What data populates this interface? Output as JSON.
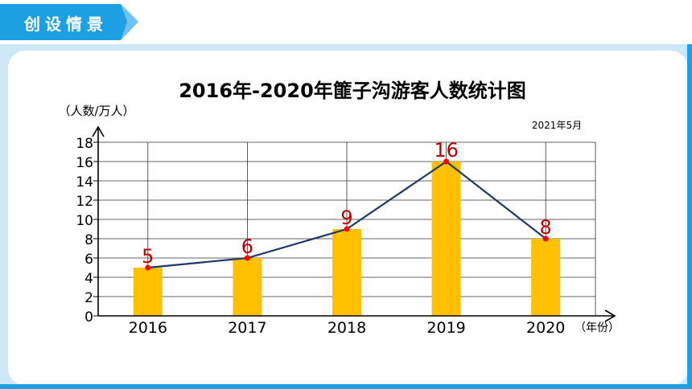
{
  "banner": {
    "title": "创设情景"
  },
  "colors": {
    "banner_blue": "#1d9fe4",
    "frame_blue": "#cfe8f7",
    "bar": "#ffc000",
    "line": "#1f3864",
    "point": "#ff0000",
    "label": "#c00000"
  },
  "chart_data": {
    "type": "bar",
    "title": "2016年-2020年篚子沟游客人数统计图",
    "subtitle": "2021年5月",
    "ylabel": "（人数/万人）",
    "xlabel": "（年份）",
    "categories": [
      "2016",
      "2017",
      "2018",
      "2019",
      "2020"
    ],
    "series": [
      {
        "values": [
          5,
          6,
          9,
          16,
          8
        ]
      }
    ],
    "overlay": "line",
    "ylim": [
      0,
      18
    ],
    "yticks": [
      0,
      2,
      4,
      6,
      8,
      10,
      12,
      14,
      16,
      18
    ],
    "grid": true,
    "data_labels": [
      "5",
      "6",
      "9",
      "16",
      "8"
    ]
  }
}
